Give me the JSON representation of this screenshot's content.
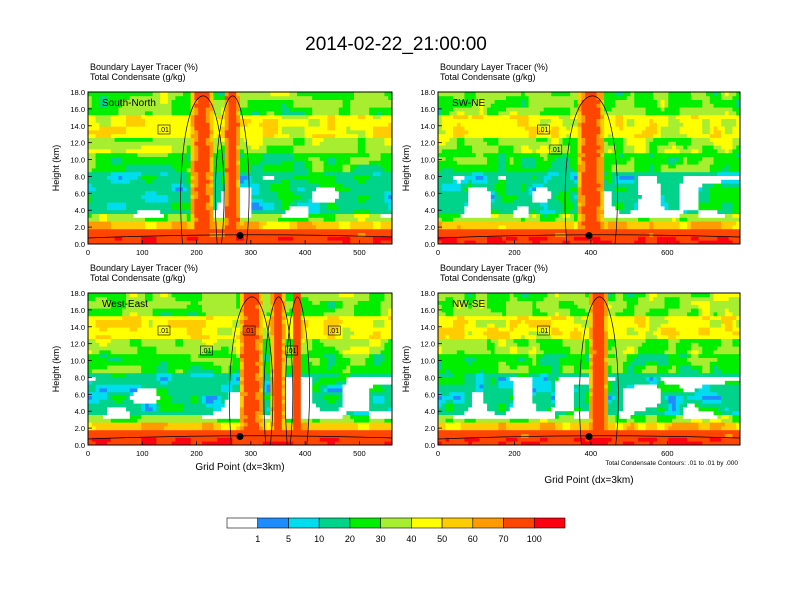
{
  "title": "2014-02-22_21:00:00",
  "chart_data": [
    {
      "type": "heatmap",
      "panel_label": "South-North",
      "subtitle_line1": "Boundary Layer Tracer   (%)",
      "subtitle_line2": "Total Condensate   (g/kg)",
      "xlabel": "",
      "ylabel": "Height (km)",
      "xlim": [
        0,
        560
      ],
      "ylim": [
        0,
        18
      ],
      "xticks": [
        0,
        100,
        200,
        300,
        400,
        500
      ],
      "yticks": [
        "0.0",
        "2.0",
        "4.0",
        "6.0",
        "8.0",
        "10.0",
        "12.0",
        "14.0",
        "16.0",
        "18.0"
      ],
      "contour_labels": [
        ".01"
      ],
      "marker": {
        "x": 280,
        "y": 1.0
      },
      "plume_columns": [
        {
          "x": 210,
          "w": 40
        },
        {
          "x": 265,
          "w": 30
        }
      ]
    },
    {
      "type": "heatmap",
      "panel_label": "SW-NE",
      "subtitle_line1": "Boundary Layer Tracer   (%)",
      "subtitle_line2": "Total Condensate   (g/kg)",
      "xlabel": "",
      "ylabel": "Height (km)",
      "xlim": [
        0,
        790
      ],
      "ylim": [
        0,
        18
      ],
      "xticks": [
        0,
        200,
        400,
        600
      ],
      "yticks": [
        "0.0",
        "2.0",
        "4.0",
        "6.0",
        "8.0",
        "10.0",
        "12.0",
        "14.0",
        "16.0",
        "18.0"
      ],
      "contour_labels": [
        ".01",
        ".01"
      ],
      "marker": {
        "x": 395,
        "y": 1.0
      },
      "plume_columns": [
        {
          "x": 400,
          "w": 70
        }
      ]
    },
    {
      "type": "heatmap",
      "panel_label": "West-East",
      "subtitle_line1": "Boundary Layer Tracer   (%)",
      "subtitle_line2": "Total Condensate   (g/kg)",
      "xlabel": "Grid Point (dx=3km)",
      "ylabel": "Height (km)",
      "xlim": [
        0,
        560
      ],
      "ylim": [
        0,
        18
      ],
      "xticks": [
        0,
        100,
        200,
        300,
        400,
        500
      ],
      "yticks": [
        "0.0",
        "2.0",
        "4.0",
        "6.0",
        "8.0",
        "10.0",
        "12.0",
        "14.0",
        "16.0",
        "18.0"
      ],
      "contour_labels": [
        ".01",
        ".01",
        ".01",
        ".01",
        ".01"
      ],
      "marker": {
        "x": 280,
        "y": 1.0
      },
      "plume_columns": [
        {
          "x": 300,
          "w": 40
        },
        {
          "x": 350,
          "w": 25
        },
        {
          "x": 385,
          "w": 20
        }
      ]
    },
    {
      "type": "heatmap",
      "panel_label": "NW-SE",
      "subtitle_line1": "Boundary Layer Tracer   (%)",
      "subtitle_line2": "Total Condensate   (g/kg)",
      "xlabel": "Grid Point (dx=3km)",
      "ylabel": "Height (km)",
      "xlim": [
        0,
        790
      ],
      "ylim": [
        0,
        18
      ],
      "xticks": [
        0,
        200,
        400,
        600
      ],
      "yticks": [
        "0.0",
        "2.0",
        "4.0",
        "6.0",
        "8.0",
        "10.0",
        "12.0",
        "14.0",
        "16.0",
        "18.0"
      ],
      "contour_labels": [
        ".01"
      ],
      "marker": {
        "x": 395,
        "y": 1.0
      },
      "plume_columns": [
        {
          "x": 420,
          "w": 50
        }
      ],
      "footnote": "Total Condensate Contours: .01 to .01 by .000"
    }
  ],
  "colorbar": {
    "labels": [
      "1",
      "5",
      "10",
      "20",
      "30",
      "40",
      "50",
      "60",
      "70",
      "100"
    ],
    "colors": [
      "#ffffff",
      "#1e8cff",
      "#00ddee",
      "#00d38a",
      "#00ee00",
      "#a8ee30",
      "#ffff00",
      "#ffcc00",
      "#ff9a00",
      "#ff4600",
      "#ff0010"
    ]
  }
}
